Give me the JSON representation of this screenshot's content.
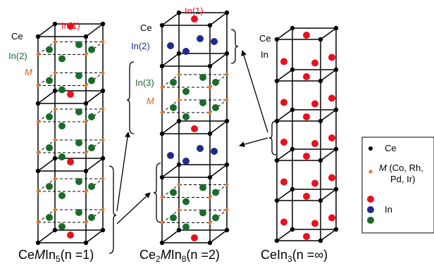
{
  "colors": {
    "ce": "#000000",
    "m_site": "#e87722",
    "in1": "#e8101c",
    "in2_blue": "#1f2a8a",
    "in_green": "#1a6b2a",
    "label_red": "#e8101c",
    "label_green": "#1a6b2a",
    "label_blue": "#1f2a8a",
    "label_orange": "#e85a10",
    "line": "#000000"
  },
  "structures": {
    "s1": {
      "title_prefix": "Ce",
      "title_m": "M",
      "title_in": "In",
      "title_sub": "5",
      "title_n": "(n =1)",
      "labels": {
        "in1": "In(1)",
        "ce": "Ce",
        "in2": "In(2)",
        "m": "M"
      }
    },
    "s2": {
      "title_prefix": "Ce",
      "title_sub1": "2",
      "title_m": "M",
      "title_in": "In",
      "title_sub2": "8",
      "title_n": "(n =2)",
      "labels": {
        "in1": "In(1)",
        "ce": "Ce",
        "in2": "In(2)",
        "in3": "In(3)",
        "m": "M"
      }
    },
    "s3": {
      "title_prefix": "CeIn",
      "title_sub": "3",
      "title_n": "(n =∞)",
      "labels": {
        "ce": "Ce",
        "in": "In"
      }
    }
  },
  "legend": {
    "ce": "Ce",
    "m_line1": "M",
    "m_line1_rest": " (Co, Rh,",
    "m_line2": "Pd, Ir)",
    "in": "In"
  }
}
